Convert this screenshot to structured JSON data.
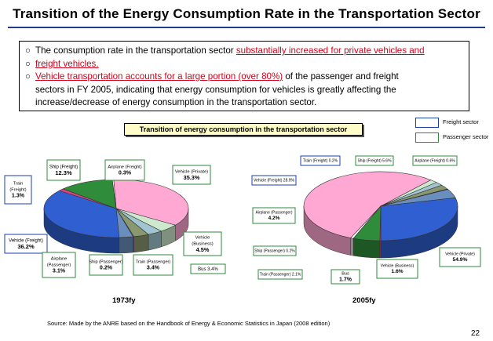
{
  "title": "Transition of the Energy Consumption Rate in the Transportation Sector",
  "bullets": {
    "b1_pre": "The consumption rate in the transportation sector ",
    "b1_red": "substantially increased for private vehicles and",
    "b1_red2": "freight vehicles.",
    "b2_red": "Vehicle transportation accounts for a large portion (over 80%)",
    "b2_rest": " of the passenger and freight",
    "b2_line2": "sectors in FY 2005, indicating that energy consumption for vehicles is greatly affecting the",
    "b2_line3": "increase/decrease of energy consumption in the transportation sector."
  },
  "legend": {
    "freight": "Freight sector",
    "passenger": "Passenger sector"
  },
  "source": "Source: Made by the ANRE based on the Handbook  of Energy & Economic Statistics in Japan (2008 edition)",
  "page_number": "22",
  "colors": {
    "vehicle_private": "#ffa8d4",
    "vehicle_business": "#cde8cd",
    "bus": "#a0c4d0",
    "train_passenger": "#8a9870",
    "ship_passenger": "#9a6fc0",
    "airplane_passenger": "#6a8fbf",
    "vehicle_freight": "#2f5fd0",
    "train_freight": "#e04080",
    "ship_freight": "#2f8c3a",
    "airplane_freight": "#ffffff",
    "depth": "#5a5a5a"
  },
  "chart_data": [
    {
      "type": "pie",
      "title": "Transition of energy consumption in the transportation sector",
      "year_label": "1973fy",
      "slices": [
        {
          "key": "vehicle_private",
          "name": "Vehicle (Private)",
          "value": 35.3,
          "label": "35.3%",
          "sector": "passenger"
        },
        {
          "key": "vehicle_business",
          "name": "Vehicle (Business)",
          "value": 4.5,
          "label": "4.5%",
          "sector": "passenger"
        },
        {
          "key": "bus",
          "name": "Bus",
          "value": 3.4,
          "label": "3.4%",
          "sector": "passenger"
        },
        {
          "key": "train_passenger",
          "name": "Train (Passenger)",
          "value": 3.4,
          "label": "3.4%",
          "sector": "passenger"
        },
        {
          "key": "ship_passenger",
          "name": "Ship (Passenger)",
          "value": 0.2,
          "label": "0.2%",
          "sector": "passenger"
        },
        {
          "key": "airplane_passenger",
          "name": "Airplane (Passenger)",
          "value": 3.1,
          "label": "3.1%",
          "sector": "passenger"
        },
        {
          "key": "vehicle_freight",
          "name": "Vehicle (Freight)",
          "value": 36.2,
          "label": "36.2%",
          "sector": "freight"
        },
        {
          "key": "train_freight",
          "name": "Train (Freight)",
          "value": 1.3,
          "label": "1.3%",
          "sector": "freight"
        },
        {
          "key": "ship_freight",
          "name": "Ship (Freight)",
          "value": 12.3,
          "label": "12.3%",
          "sector": "freight"
        },
        {
          "key": "airplane_freight",
          "name": "Airplane (Freight)",
          "value": 0.3,
          "label": "0.3%",
          "sector": "freight"
        }
      ]
    },
    {
      "type": "pie",
      "title": "Transition of energy consumption in the transportation sector",
      "year_label": "2005fy",
      "slices": [
        {
          "key": "vehicle_private",
          "name": "Vehicle (Private)",
          "value": 54.9,
          "label": "54.9%",
          "sector": "passenger"
        },
        {
          "key": "vehicle_business",
          "name": "Vehicle (Business)",
          "value": 1.6,
          "label": "1.6%",
          "sector": "passenger"
        },
        {
          "key": "bus",
          "name": "Bus",
          "value": 1.7,
          "label": "1.7%",
          "sector": "passenger"
        },
        {
          "key": "train_passenger",
          "name": "Train (Passenger)",
          "value": 2.1,
          "label": "2.1%",
          "sector": "passenger"
        },
        {
          "key": "ship_passenger",
          "name": "Ship (Passenger)",
          "value": 0.2,
          "label": "0.2%",
          "sector": "passenger"
        },
        {
          "key": "airplane_passenger",
          "name": "Airplane (Passenger)",
          "value": 4.2,
          "label": "4.2%",
          "sector": "passenger"
        },
        {
          "key": "vehicle_freight",
          "name": "Vehicle (Freight)",
          "value": 28.9,
          "label": "28.9%",
          "sector": "freight"
        },
        {
          "key": "train_freight",
          "name": "Train (Freight)",
          "value": 0.2,
          "label": "0.2%",
          "sector": "freight"
        },
        {
          "key": "ship_freight",
          "name": "Ship (Freight)",
          "value": 5.6,
          "label": "5.6%",
          "sector": "freight"
        },
        {
          "key": "airplane_freight",
          "name": "Airplane (Freight)",
          "value": 0.6,
          "label": "0.6%",
          "sector": "freight"
        }
      ]
    }
  ],
  "callouts_1973": {
    "train_freight": [
      "Train",
      "(Freight)",
      "1.3%"
    ],
    "ship_freight": [
      "Ship (Freight)",
      "12.3%"
    ],
    "airplane_freight": [
      "Airplane (Freight)",
      "0.3%"
    ],
    "vehicle_private": [
      "Vehicle (Private)",
      "35.3%"
    ],
    "vehicle_freight": [
      "Vehicle (Freight)",
      "36.2%"
    ],
    "vehicle_business": [
      "Vehicle",
      "(Business)",
      "4.5%"
    ],
    "bus": [
      "Bus  3.4%"
    ],
    "train_passenger": [
      "Train (Passenger)",
      "3.4%"
    ],
    "ship_passenger": [
      "Ship (Passenger)",
      "0.2%"
    ],
    "airplane_passenger": [
      "Airplane",
      "(Passenger)",
      "3.1%"
    ]
  },
  "callouts_2005": {
    "train_freight": [
      "Train (Freight) 0.2%"
    ],
    "ship_freight": [
      "Ship (Freight) 5.6%"
    ],
    "airplane_freight": [
      "Airplane (Freight) 0.6%"
    ],
    "vehicle_freight": [
      "Vehicle (Freight) 28.9%"
    ],
    "airplane_passenger": [
      "Airplane (Passenger)",
      "4.2%"
    ],
    "ship_passenger": [
      "Ship (Passenger) 0.2%"
    ],
    "train_passenger": [
      "Train (Passenger) 2.1%"
    ],
    "bus": [
      "Bus",
      "1.7%"
    ],
    "vehicle_business": [
      "Vehicle (Business)",
      "1.6%"
    ],
    "vehicle_private": [
      "Vehicle (Private)",
      "54.9%"
    ]
  }
}
